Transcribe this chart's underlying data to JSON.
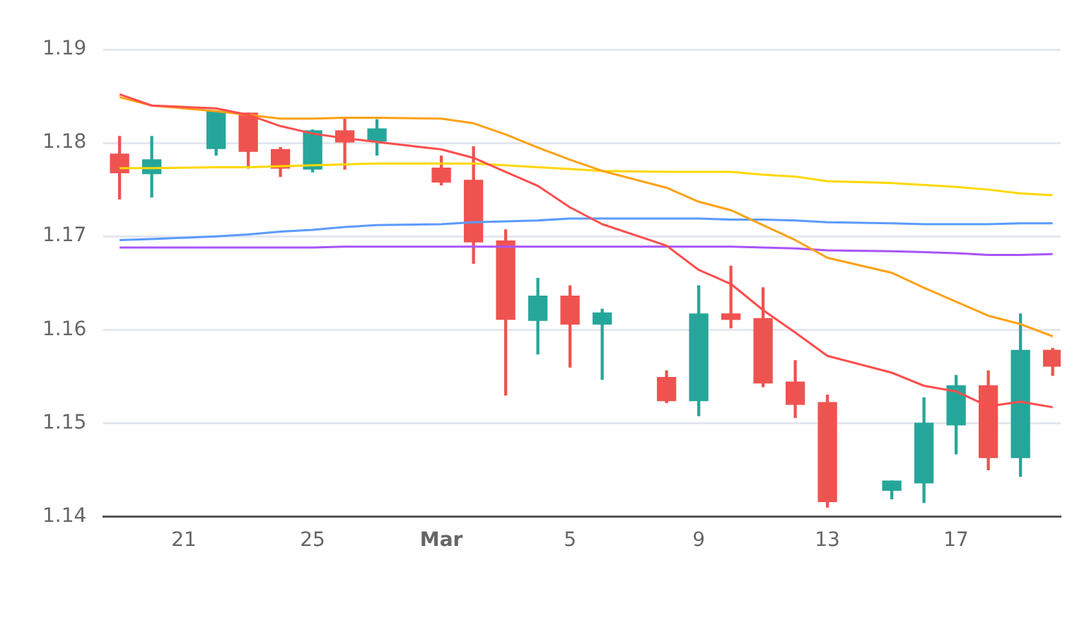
{
  "chart_data": {
    "type": "candlestick",
    "x": [
      "--02-19",
      "--02-20",
      "--02-22",
      "--02-23",
      "--02-24",
      "--02-25",
      "--02-26",
      "--02-27",
      "--03-01",
      "--03-02",
      "--03-03",
      "--03-04",
      "--03-05",
      "--03-06",
      "--03-08",
      "--03-09",
      "--03-10",
      "--03-11",
      "--03-12",
      "--03-13",
      "--03-15",
      "--03-16",
      "--03-17",
      "--03-18",
      "--03-19",
      "--03-20"
    ],
    "ohlc": [
      [
        1.1788,
        1.1807,
        1.174,
        1.1768
      ],
      [
        1.1767,
        1.1807,
        1.1742,
        1.1782
      ],
      [
        1.1794,
        1.1834,
        1.1787,
        1.1834
      ],
      [
        1.1832,
        1.1832,
        1.1773,
        1.1791
      ],
      [
        1.1793,
        1.1795,
        1.1764,
        1.1773
      ],
      [
        1.1772,
        1.1814,
        1.1769,
        1.1813
      ],
      [
        1.1813,
        1.1827,
        1.1772,
        1.1801
      ],
      [
        1.1802,
        1.1825,
        1.1787,
        1.1815
      ],
      [
        1.1773,
        1.1786,
        1.1755,
        1.1758
      ],
      [
        1.176,
        1.1796,
        1.1671,
        1.1694
      ],
      [
        1.1695,
        1.1707,
        1.153,
        1.1611
      ],
      [
        1.161,
        1.1655,
        1.1574,
        1.1636
      ],
      [
        1.1636,
        1.1647,
        1.156,
        1.1606
      ],
      [
        1.1606,
        1.1622,
        1.1547,
        1.1618
      ],
      [
        1.1549,
        1.1556,
        1.1522,
        1.1524
      ],
      [
        1.1524,
        1.1647,
        1.1508,
        1.1617
      ],
      [
        1.1617,
        1.1668,
        1.1602,
        1.1611
      ],
      [
        1.1612,
        1.1645,
        1.1539,
        1.1543
      ],
      [
        1.1544,
        1.1567,
        1.1506,
        1.152
      ],
      [
        1.1522,
        1.153,
        1.141,
        1.1416
      ],
      [
        1.1428,
        1.1438,
        1.1419,
        1.1438
      ],
      [
        1.1436,
        1.1527,
        1.1415,
        1.15
      ],
      [
        1.1498,
        1.1551,
        1.1467,
        1.154
      ],
      [
        1.154,
        1.1556,
        1.145,
        1.1463
      ],
      [
        1.1463,
        1.1617,
        1.1443,
        1.1578
      ],
      [
        1.1578,
        1.158,
        1.1551,
        1.1561
      ]
    ],
    "colors": [
      "#ef5350",
      "#26a69a",
      "#26a69a",
      "#ef5350",
      "#ef5350",
      "#26a69a",
      "#ef5350",
      "#26a69a",
      "#ef5350",
      "#ef5350",
      "#ef5350",
      "#26a69a",
      "#ef5350",
      "#26a69a",
      "#ef5350",
      "#26a69a",
      "#ef5350",
      "#ef5350",
      "#ef5350",
      "#ef5350",
      "#26a69a",
      "#26a69a",
      "#26a69a",
      "#ef5350",
      "#26a69a",
      "#ef5350"
    ],
    "series": [
      {
        "type": "line",
        "color": "#ff4d4d",
        "values": [
          1.1852,
          1.184,
          1.1837,
          1.183,
          1.1818,
          1.181,
          1.1805,
          1.1801,
          1.1793,
          1.1784,
          1.1769,
          1.1754,
          1.1731,
          1.1713,
          1.169,
          1.1664,
          1.1649,
          1.1621,
          1.1597,
          1.1572,
          1.1554,
          1.154,
          1.1534,
          1.1518,
          1.1523,
          1.1517
        ]
      },
      {
        "type": "line",
        "color": "#ffa114",
        "values": [
          1.1849,
          1.184,
          1.1834,
          1.183,
          1.1826,
          1.1826,
          1.1827,
          1.1827,
          1.1826,
          1.1821,
          1.1809,
          1.1795,
          1.1782,
          1.177,
          1.1752,
          1.1737,
          1.1728,
          1.1712,
          1.1696,
          1.1677,
          1.1661,
          1.1645,
          1.163,
          1.1615,
          1.1606,
          1.1593
        ]
      },
      {
        "type": "line",
        "color": "#ffd700",
        "values": [
          1.1773,
          1.1773,
          1.1774,
          1.1774,
          1.1775,
          1.1776,
          1.1777,
          1.1778,
          1.1778,
          1.1778,
          1.1776,
          1.1774,
          1.1772,
          1.177,
          1.1769,
          1.1769,
          1.1769,
          1.1766,
          1.1764,
          1.1759,
          1.1757,
          1.1755,
          1.1753,
          1.175,
          1.1746,
          1.1744
        ]
      },
      {
        "type": "line",
        "color": "#5b9bff",
        "values": [
          1.1696,
          1.1697,
          1.17,
          1.1702,
          1.1705,
          1.1707,
          1.171,
          1.1712,
          1.1713,
          1.1715,
          1.1716,
          1.1717,
          1.1719,
          1.1719,
          1.1719,
          1.1719,
          1.1718,
          1.1718,
          1.1717,
          1.1715,
          1.1714,
          1.1713,
          1.1713,
          1.1713,
          1.1714,
          1.1714
        ]
      },
      {
        "type": "line",
        "color": "#a855f7",
        "values": [
          1.1688,
          1.1688,
          1.1688,
          1.1688,
          1.1688,
          1.1688,
          1.1689,
          1.1689,
          1.1689,
          1.1689,
          1.1689,
          1.1689,
          1.1689,
          1.1689,
          1.1689,
          1.1689,
          1.1689,
          1.1688,
          1.1687,
          1.1685,
          1.1684,
          1.1683,
          1.1682,
          1.168,
          1.168,
          1.1681
        ]
      }
    ],
    "xlim": [
      "--02-18T12:00",
      "--03-20T06:00"
    ],
    "xticks": [
      {
        "value": "--02-21",
        "label": "21"
      },
      {
        "value": "--02-25",
        "label": "25"
      },
      {
        "value": "--03-01",
        "label": "Mar"
      },
      {
        "value": "--03-05",
        "label": "5"
      },
      {
        "value": "--03-09",
        "label": "9"
      },
      {
        "value": "--03-13",
        "label": "13"
      },
      {
        "value": "--03-17",
        "label": "17"
      }
    ],
    "ylim": [
      1.14,
      1.19
    ],
    "yticks": [
      1.14,
      1.15,
      1.16,
      1.17,
      1.18,
      1.19
    ],
    "grid": "y",
    "legend": false,
    "marker": "none",
    "line_style": "solid"
  }
}
